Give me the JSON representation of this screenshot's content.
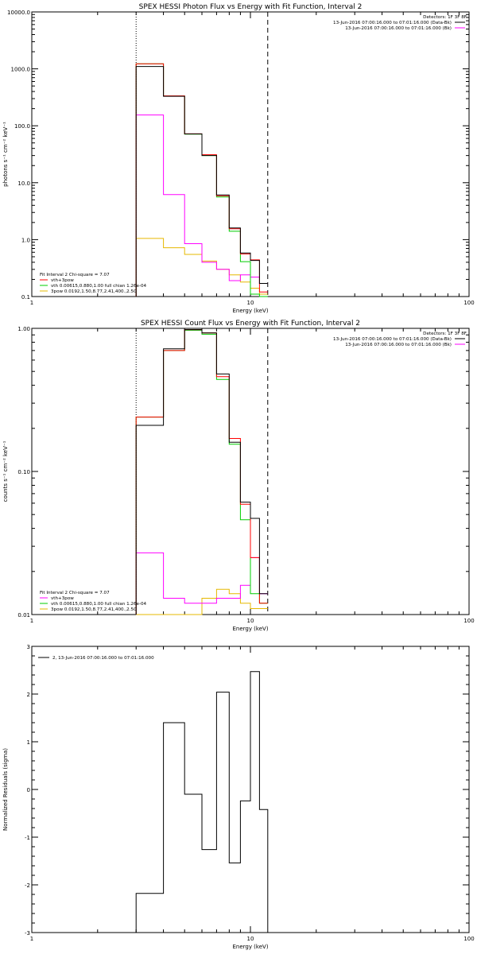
{
  "colors": {
    "axis": "#000000",
    "data": "#000000",
    "bk": "#ff00ff",
    "model": "#ff0000",
    "vth": "#00cc00",
    "pow": "#e6b800"
  },
  "chart_data": [
    {
      "type": "line",
      "title": "SPEX HESSI Photon Flux vs Energy with Fit Function, Interval 2",
      "xlabel": "Energy (keV)",
      "ylabel": "photons s⁻¹ cm⁻² keV⁻¹",
      "xscale": "log",
      "yscale": "log",
      "xlim": [
        1,
        100
      ],
      "ylim": [
        0.1,
        10000
      ],
      "xticks": [
        {
          "v": 1,
          "label": "1"
        },
        {
          "v": 10,
          "label": "10"
        },
        {
          "v": 100,
          "label": "100"
        }
      ],
      "yticks": [
        {
          "v": 0.1,
          "label": "0.1"
        },
        {
          "v": 1,
          "label": "1.0"
        },
        {
          "v": 10,
          "label": "10.0"
        },
        {
          "v": 100,
          "label": "100.0"
        },
        {
          "v": 1000,
          "label": "1000.0"
        },
        {
          "v": 10000,
          "label": "10000.0"
        }
      ],
      "vlines": [
        {
          "x": 3.0,
          "style": "dotted"
        },
        {
          "x": 12.0,
          "style": "dashed"
        }
      ],
      "edges": [
        3,
        4,
        5,
        6,
        7,
        8,
        9,
        10,
        11,
        12
      ],
      "series": [
        {
          "key": "data",
          "values": [
            1100,
            330,
            72,
            30,
            6.1,
            1.6,
            0.58,
            0.43,
            0.17
          ]
        },
        {
          "key": "bk",
          "values": [
            155,
            6.2,
            0.85,
            0.4,
            0.3,
            0.19,
            0.24,
            0.22,
            0.17
          ]
        },
        {
          "key": "model",
          "values": [
            1230,
            335,
            72,
            31,
            5.9,
            1.55,
            0.56,
            0.44,
            0.12
          ]
        },
        {
          "key": "vth",
          "values": [
            1230,
            332,
            71,
            30,
            5.6,
            1.4,
            0.41,
            0.11,
            0.1
          ]
        },
        {
          "key": "pow",
          "values": [
            1.05,
            0.72,
            0.55,
            0.42,
            0.3,
            0.24,
            0.18,
            0.14,
            0.11
          ]
        }
      ],
      "info": {
        "lines": [
          "Detectors: 1F 3F 8F",
          "13-Jun-2016 07:00:16.000 to 07:01:16.000 (Data-Bk)",
          "13-Jun-2016 07:00:16.000 to 07:01:16.000 (Bk)"
        ],
        "swatch_keys": [
          "",
          "data",
          "bk"
        ]
      },
      "legend": {
        "title": "Fit Interval 2  Chi-square = 7.07",
        "entries": [
          {
            "key": "model",
            "label": "vth+3pow"
          },
          {
            "key": "vth",
            "label": "vth 0.00615,0.880,1.00  full chian 1.26e-04"
          },
          {
            "key": "pow",
            "label": "3pow 0.0192,1.50,8.77,2.41,400.,2.50"
          }
        ]
      }
    },
    {
      "type": "line",
      "title": "SPEX HESSI Count Flux vs Energy with Fit Function, Interval 2",
      "xlabel": "Energy (keV)",
      "ylabel": "counts s⁻¹ cm⁻² keV⁻¹",
      "xscale": "log",
      "yscale": "log",
      "xlim": [
        1,
        100
      ],
      "ylim": [
        0.01,
        1
      ],
      "xticks": [
        {
          "v": 1,
          "label": "1"
        },
        {
          "v": 10,
          "label": "10"
        },
        {
          "v": 100,
          "label": "100"
        }
      ],
      "yticks": [
        {
          "v": 0.01,
          "label": "0.01"
        },
        {
          "v": 0.1,
          "label": "0.10"
        },
        {
          "v": 1,
          "label": "1.00"
        }
      ],
      "vlines": [
        {
          "x": 3.0,
          "style": "dotted"
        },
        {
          "x": 12.0,
          "style": "dashed"
        }
      ],
      "edges": [
        3,
        4,
        5,
        6,
        7,
        8,
        9,
        10,
        11,
        12
      ],
      "series": [
        {
          "key": "data",
          "values": [
            0.21,
            0.72,
            0.98,
            0.93,
            0.48,
            0.16,
            0.061,
            0.047,
            0.014
          ]
        },
        {
          "key": "bk",
          "values": [
            0.027,
            0.013,
            0.012,
            0.012,
            0.013,
            0.013,
            0.016,
            0.025,
            0.014
          ]
        },
        {
          "key": "model",
          "values": [
            0.24,
            0.7,
            0.98,
            0.93,
            0.46,
            0.17,
            0.059,
            0.025,
            0.012
          ]
        },
        {
          "key": "vth",
          "values": [
            0.24,
            0.7,
            0.97,
            0.91,
            0.44,
            0.155,
            0.046,
            0.014,
            0.012
          ]
        },
        {
          "key": "pow",
          "values": [
            0.0085,
            0.0085,
            0.0085,
            0.013,
            0.015,
            0.014,
            0.012,
            0.011,
            0.011
          ]
        }
      ],
      "info": {
        "lines": [
          "Detectors: 1F 3F 8F",
          "13-Jun-2016 07:00:16.000 to 07:01:16.000 (Data-Bk)",
          "13-Jun-2016 07:00:16.000 to 07:01:16.000 (Bk)"
        ],
        "swatch_keys": [
          "",
          "data",
          "bk"
        ]
      },
      "legend": {
        "title": "Fit Interval 2  Chi-square = 7.07",
        "entries": [
          {
            "key": "bk",
            "label": "vth+3pow"
          },
          {
            "key": "vth",
            "label": "vth 0.00615,0.880,1.00  full chian 1.26e-04"
          },
          {
            "key": "pow",
            "label": "3pow 0.0192,1.50,8.77,2.41,400.,2.50"
          }
        ]
      }
    },
    {
      "type": "line",
      "title": "",
      "xlabel": "Energy (keV)",
      "ylabel": "Normalized Residuals (sigma)",
      "xscale": "log",
      "yscale": "linear",
      "xlim": [
        1,
        100
      ],
      "ylim": [
        -3,
        3
      ],
      "xticks": [
        {
          "v": 1,
          "label": "1"
        },
        {
          "v": 10,
          "label": "10"
        },
        {
          "v": 100,
          "label": "100"
        }
      ],
      "yticks": [
        {
          "v": -3,
          "label": "-3"
        },
        {
          "v": -2,
          "label": "-2"
        },
        {
          "v": -1,
          "label": "-1"
        },
        {
          "v": 0,
          "label": "0"
        },
        {
          "v": 1,
          "label": "1"
        },
        {
          "v": 2,
          "label": "2"
        },
        {
          "v": 3,
          "label": "3"
        }
      ],
      "vlines": [],
      "edges": [
        3,
        4,
        5,
        6,
        7,
        8,
        9,
        10,
        11,
        12
      ],
      "series": [
        {
          "key": "data",
          "values": [
            -2.18,
            1.4,
            -0.1,
            -1.26,
            2.04,
            -1.54,
            -0.24,
            2.47,
            -0.42
          ]
        }
      ],
      "info": {
        "lines": [],
        "swatch_keys": []
      },
      "legend": {
        "title": "",
        "entries": [
          {
            "key": "data",
            "label": "2, 13-Jun-2016 07:00:16.000 to 07:01:16.000"
          }
        ]
      }
    }
  ]
}
